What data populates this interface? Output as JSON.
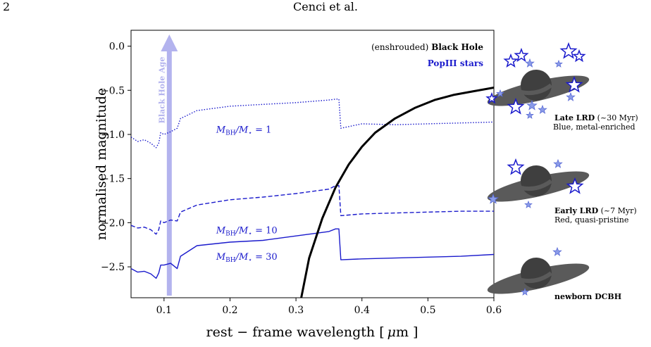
{
  "header": {
    "page_number": "2",
    "running_head": "Cenci et al."
  },
  "chart_data": {
    "type": "line",
    "xlabel": "rest − frame wavelength  [ μm ]",
    "ylabel": "normalised magnitude",
    "xlim": [
      0.05,
      0.6
    ],
    "ylim": [
      -2.85,
      0.18
    ],
    "xticks": [
      0.1,
      0.2,
      0.3,
      0.4,
      0.5,
      0.6
    ],
    "xtick_labels": [
      "0.1",
      "0.2",
      "0.3",
      "0.4",
      "0.5",
      "0.6"
    ],
    "yticks": [
      0.0,
      -0.5,
      -1.0,
      -1.5,
      -2.0,
      -2.5
    ],
    "ytick_labels": [
      "0.0",
      "−0.5",
      "−1.0",
      "−1.5",
      "−2.0",
      "−2.5"
    ],
    "grid": false,
    "legend_placement": "top-right",
    "legend": [
      {
        "label_prefix": "(enshrouded)",
        "label_main": "Black Hole",
        "color": "#000000"
      },
      {
        "label_prefix": "",
        "label_main": "PopIII stars",
        "color": "#1a1acc"
      }
    ],
    "arrow_label": "Black Hole Age",
    "arrow_x": 0.108,
    "colors": {
      "stars": "#1a1acc",
      "bh": "#000000",
      "arrow": "#b3b3ee"
    },
    "series": [
      {
        "name": "PopIII stars",
        "ratio_label": "M_BH/M_⋆ = 1",
        "ratio_prefix": "M",
        "ratio_sub1": "BH",
        "ratio_mid": "/M",
        "ratio_sub2": "⋆",
        "ratio_suffix": " = 1",
        "label_at": [
          0.147,
          -0.98
        ],
        "style": "dotted",
        "x": [
          0.05,
          0.06,
          0.07,
          0.08,
          0.088,
          0.092,
          0.095,
          0.1,
          0.11,
          0.12,
          0.125,
          0.15,
          0.2,
          0.25,
          0.3,
          0.35,
          0.36,
          0.365,
          0.368,
          0.4,
          0.45,
          0.5,
          0.55,
          0.6
        ],
        "y": [
          -1.03,
          -1.08,
          -1.06,
          -1.1,
          -1.15,
          -1.1,
          -0.98,
          -1.0,
          -0.97,
          -0.93,
          -0.82,
          -0.73,
          -0.68,
          -0.66,
          -0.64,
          -0.61,
          -0.6,
          -0.6,
          -0.93,
          -0.88,
          -0.89,
          -0.88,
          -0.87,
          -0.86
        ]
      },
      {
        "name": "PopIII stars",
        "ratio_label": "M_BH/M_⋆ = 10",
        "ratio_prefix": "M",
        "ratio_sub1": "BH",
        "ratio_mid": "/M",
        "ratio_sub2": "⋆",
        "ratio_suffix": " = 10",
        "label_at": [
          0.147,
          -2.12
        ],
        "style": "dashed",
        "x": [
          0.05,
          0.06,
          0.07,
          0.08,
          0.088,
          0.092,
          0.095,
          0.1,
          0.11,
          0.12,
          0.125,
          0.15,
          0.2,
          0.25,
          0.3,
          0.35,
          0.36,
          0.365,
          0.368,
          0.4,
          0.45,
          0.5,
          0.55,
          0.6
        ],
        "y": [
          -2.03,
          -2.06,
          -2.05,
          -2.08,
          -2.13,
          -2.08,
          -1.98,
          -2.0,
          -1.97,
          -1.98,
          -1.88,
          -1.8,
          -1.74,
          -1.71,
          -1.67,
          -1.62,
          -1.58,
          -1.58,
          -1.92,
          -1.9,
          -1.89,
          -1.88,
          -1.87,
          -1.87
        ]
      },
      {
        "name": "PopIII stars",
        "ratio_label": "M_BH/M_⋆ = 30",
        "ratio_prefix": "M",
        "ratio_sub1": "BH",
        "ratio_mid": "/M",
        "ratio_sub2": "⋆",
        "ratio_suffix": " = 30",
        "label_at": [
          0.147,
          -2.42
        ],
        "style": "solid",
        "x": [
          0.05,
          0.06,
          0.07,
          0.08,
          0.088,
          0.092,
          0.095,
          0.1,
          0.11,
          0.12,
          0.125,
          0.15,
          0.2,
          0.25,
          0.3,
          0.35,
          0.36,
          0.365,
          0.368,
          0.4,
          0.45,
          0.5,
          0.55,
          0.6
        ],
        "y": [
          -2.52,
          -2.56,
          -2.55,
          -2.58,
          -2.63,
          -2.57,
          -2.48,
          -2.48,
          -2.46,
          -2.52,
          -2.38,
          -2.26,
          -2.22,
          -2.2,
          -2.15,
          -2.1,
          -2.07,
          -2.07,
          -2.42,
          -2.41,
          -2.4,
          -2.39,
          -2.38,
          -2.36
        ]
      },
      {
        "name": "(enshrouded) Black Hole",
        "style": "solid-thick",
        "x": [
          0.308,
          0.32,
          0.34,
          0.36,
          0.38,
          0.4,
          0.42,
          0.45,
          0.48,
          0.51,
          0.54,
          0.57,
          0.6
        ],
        "y": [
          -2.85,
          -2.4,
          -1.95,
          -1.6,
          -1.34,
          -1.14,
          -0.98,
          -0.82,
          -0.7,
          -0.61,
          -0.55,
          -0.51,
          -0.47
        ]
      }
    ]
  },
  "illustration": {
    "stages": [
      {
        "title_main": "Late LRD",
        "title_age": " (~30 Myr)",
        "subtitle": "Blue, metal-enriched"
      },
      {
        "title_main": "Early LRD",
        "title_age": " (~7 Myr)",
        "subtitle": "Red, quasi-pristine"
      },
      {
        "title_main": "newborn DCBH",
        "title_age": "",
        "subtitle": ""
      }
    ]
  }
}
